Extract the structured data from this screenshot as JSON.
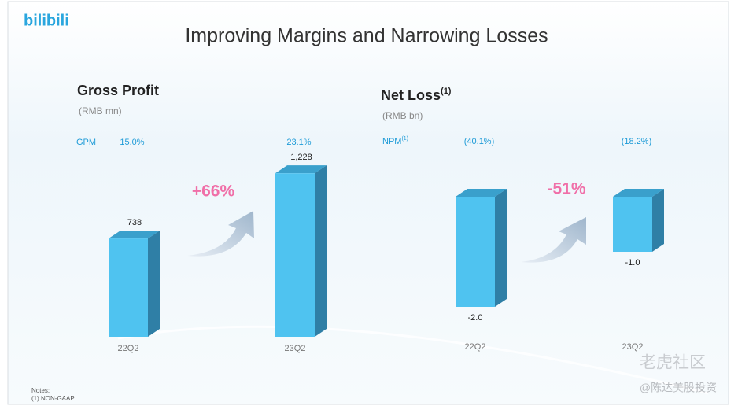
{
  "slide": {
    "logo": "bilibili",
    "title": "Improving Margins and Narrowing Losses",
    "notes_heading": "Notes:",
    "notes": [
      "(1)   NON-GAAP"
    ],
    "watermark": "老虎社区",
    "watermark_author": "@陈达美股投资"
  },
  "chart_data": [
    {
      "type": "bar3d",
      "title": "Gross Profit",
      "subtitle": "(RMB mn)",
      "categories": [
        "22Q2",
        "23Q2"
      ],
      "values": [
        738,
        1228
      ],
      "value_labels": [
        "738",
        "1,228"
      ],
      "color": "#4fc3f0",
      "ylim": [
        0,
        1300
      ],
      "ratio_label": "GPM",
      "ratios": [
        "15.0%",
        "23.1%"
      ],
      "annotation": "+66%"
    },
    {
      "type": "bar3d",
      "title": "Net Loss",
      "title_superscript": "(1)",
      "subtitle": "(RMB bn)",
      "categories": [
        "22Q2",
        "23Q2"
      ],
      "values": [
        -2.0,
        -1.0
      ],
      "value_labels": [
        "-2.0",
        "-1.0"
      ],
      "color": "#4fc3f0",
      "ylim": [
        -2.2,
        0
      ],
      "ratio_label": "NPM",
      "ratio_label_superscript": "(1)",
      "ratios": [
        "(40.1%)",
        "(18.2%)"
      ],
      "annotation": "-51%"
    }
  ]
}
